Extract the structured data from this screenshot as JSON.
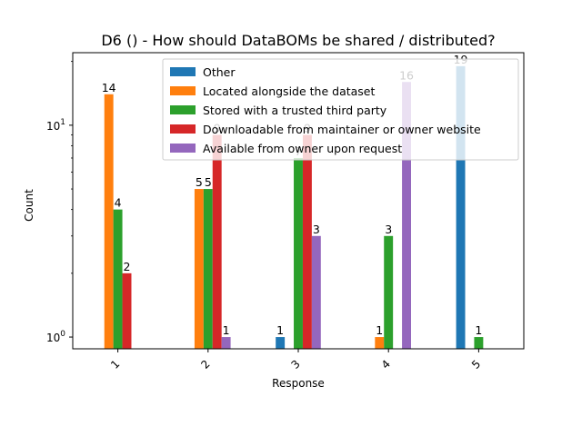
{
  "chart_data": {
    "type": "bar",
    "title": "D6 () - How should DataBOMs be shared / distributed?",
    "xlabel": "Response",
    "ylabel": "Count",
    "yscale": "log",
    "ylim": [
      0.88,
      22
    ],
    "y_ticks": [
      {
        "value": 1,
        "base": "10",
        "exp": "0"
      },
      {
        "value": 10,
        "base": "10",
        "exp": "1"
      }
    ],
    "categories": [
      "1",
      "2",
      "3",
      "4",
      "5"
    ],
    "series": [
      {
        "name": "Other",
        "color": "#1f77b4",
        "values": [
          null,
          null,
          1,
          null,
          19
        ]
      },
      {
        "name": "Located alongside the dataset",
        "color": "#ff7f0e",
        "values": [
          14,
          5,
          null,
          1,
          null
        ]
      },
      {
        "name": "Stored with a trusted third party",
        "color": "#2ca02c",
        "values": [
          4,
          5,
          7,
          3,
          1
        ]
      },
      {
        "name": "Downloadable from maintainer or owner website",
        "color": "#d62728",
        "values": [
          2,
          9,
          9,
          null,
          null
        ]
      },
      {
        "name": "Available from owner upon request",
        "color": "#9467bd",
        "values": [
          null,
          1,
          3,
          16,
          null
        ]
      }
    ],
    "legend_position": "top-right",
    "grid": false
  }
}
